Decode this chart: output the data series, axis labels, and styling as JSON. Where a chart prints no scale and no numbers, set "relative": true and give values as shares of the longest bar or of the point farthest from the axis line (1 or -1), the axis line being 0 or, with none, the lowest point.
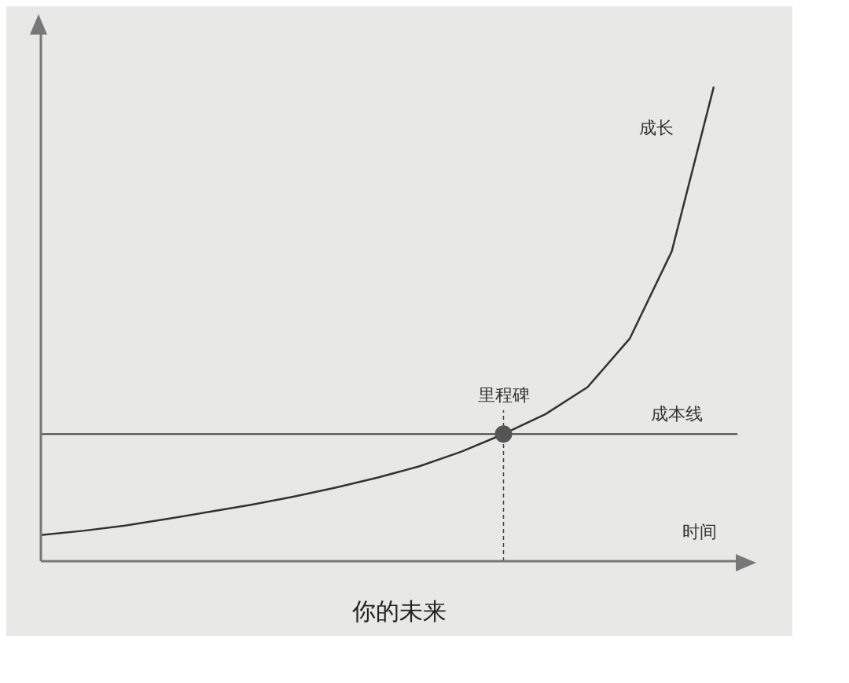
{
  "chart_data": {
    "type": "line",
    "title": "你的未来",
    "xlabel": "时间",
    "relative": true,
    "legend": false,
    "grid": false,
    "categories": [
      null,
      null,
      null,
      null,
      null,
      null,
      null,
      null,
      null,
      null,
      null,
      null,
      null,
      null,
      null,
      null,
      null
    ],
    "series": [
      {
        "name": "成长",
        "color": "#333333",
        "marker": "none",
        "values": [
          0.055,
          0.064,
          0.075,
          0.089,
          0.104,
          0.119,
          0.136,
          0.155,
          0.176,
          0.2,
          0.231,
          0.268,
          0.31,
          0.367,
          0.469,
          0.653,
          1
        ]
      }
    ],
    "ref_lines": [
      {
        "axis": "y",
        "value": 0.268,
        "label": "成本线",
        "color": "#444444"
      }
    ],
    "annotations": [
      {
        "text": "里程碑",
        "y": 0.268
      }
    ]
  }
}
